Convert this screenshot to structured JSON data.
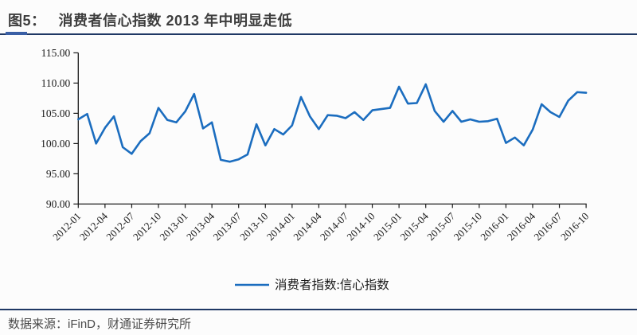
{
  "title": {
    "prefix": "图5：",
    "text": "消费者信心指数 2013 年中明显走低"
  },
  "footer": {
    "source": "数据来源：iFinD，财通证券研究所"
  },
  "legend": {
    "label": "消费者指数:信心指数"
  },
  "colors": {
    "line": "#1b6dbf",
    "axis": "#1a1a1a",
    "tick_label": "#1a1a1a",
    "title_rule": "#1f3864",
    "title_rule_accent": "#3a5fa5",
    "title_text": "#3e3e3e",
    "footer_text": "#4a4a4a"
  },
  "chart_data": {
    "type": "line",
    "title": "消费者信心指数 2013 年中明显走低",
    "xlabel": "",
    "ylabel": "",
    "ylim": [
      90,
      115
    ],
    "y_tick_labels": [
      "115.00",
      "110.00",
      "105.00",
      "100.00",
      "95.00",
      "90.00"
    ],
    "grid": false,
    "legend_position": "bottom",
    "x": [
      "2012-01",
      "2012-02",
      "2012-03",
      "2012-04",
      "2012-05",
      "2012-06",
      "2012-07",
      "2012-08",
      "2012-09",
      "2012-10",
      "2012-11",
      "2012-12",
      "2013-01",
      "2013-02",
      "2013-03",
      "2013-04",
      "2013-05",
      "2013-06",
      "2013-07",
      "2013-08",
      "2013-09",
      "2013-10",
      "2013-11",
      "2013-12",
      "2014-01",
      "2014-02",
      "2014-03",
      "2014-04",
      "2014-05",
      "2014-06",
      "2014-07",
      "2014-08",
      "2014-09",
      "2014-10",
      "2014-11",
      "2014-12",
      "2015-01",
      "2015-02",
      "2015-03",
      "2015-04",
      "2015-05",
      "2015-06",
      "2015-07",
      "2015-08",
      "2015-09",
      "2015-10",
      "2015-11",
      "2015-12",
      "2016-01",
      "2016-02",
      "2016-03",
      "2016-04",
      "2016-05",
      "2016-06",
      "2016-07",
      "2016-08",
      "2016-09",
      "2016-10"
    ],
    "x_tick_labels": [
      "2012-01",
      "2012-04",
      "2012-07",
      "2012-10",
      "2013-01",
      "2013-04",
      "2013-07",
      "2013-10",
      "2014-01",
      "2014-04",
      "2014-07",
      "2014-10",
      "2015-01",
      "2015-04",
      "2015-07",
      "2015-10",
      "2016-01",
      "2016-04",
      "2016-07",
      "2016-10"
    ],
    "series": [
      {
        "name": "消费者指数:信心指数",
        "values": [
          104.0,
          104.9,
          100.0,
          102.6,
          104.5,
          99.4,
          98.3,
          100.4,
          101.7,
          105.9,
          103.9,
          103.5,
          105.3,
          108.2,
          102.5,
          103.5,
          97.3,
          97.0,
          97.4,
          98.2,
          103.2,
          99.7,
          102.4,
          101.5,
          103.0,
          107.7,
          104.5,
          102.4,
          104.7,
          104.6,
          104.2,
          105.2,
          103.9,
          105.5,
          105.7,
          105.9,
          109.4,
          106.6,
          106.7,
          109.8,
          105.4,
          103.6,
          105.4,
          103.6,
          104.0,
          103.6,
          103.7,
          104.1,
          100.1,
          101.0,
          99.7,
          102.3,
          106.5,
          105.2,
          104.4,
          107.1,
          108.5,
          108.4
        ]
      }
    ]
  }
}
